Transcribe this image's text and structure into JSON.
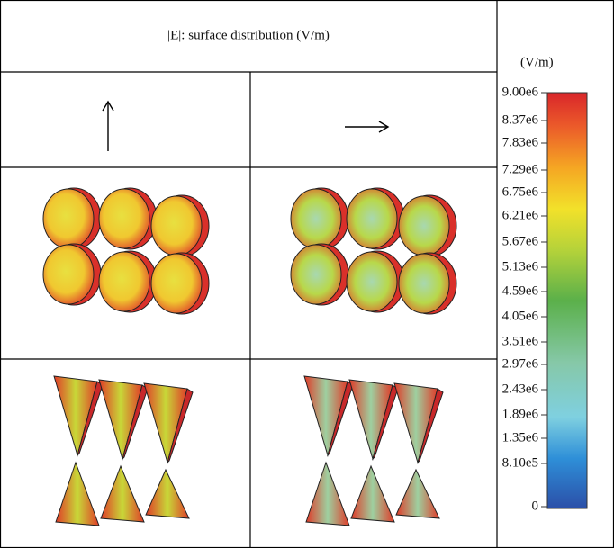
{
  "header": {
    "title": "|E|: surface distribution (V/m)"
  },
  "colorbar": {
    "unit": "(V/m)",
    "ticks": [
      "9.00e6",
      "8.37e6",
      "7.83e6",
      "7.29e6",
      "6.75e6",
      "6.21e6",
      "5.67e6",
      "5.13e6",
      "4.59e6",
      "4.05e6",
      "3.51e6",
      "2.97e6",
      "2.43e6",
      "1.89e6",
      "1.35e6",
      "8.10e5",
      "0"
    ]
  }
}
